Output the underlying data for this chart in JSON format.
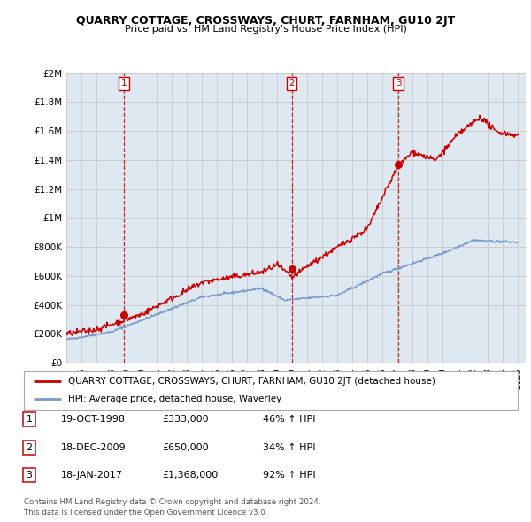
{
  "title": "QUARRY COTTAGE, CROSSWAYS, CHURT, FARNHAM, GU10 2JT",
  "subtitle": "Price paid vs. HM Land Registry's House Price Index (HPI)",
  "legend_label_red": "QUARRY COTTAGE, CROSSWAYS, CHURT, FARNHAM, GU10 2JT (detached house)",
  "legend_label_blue": "HPI: Average price, detached house, Waverley",
  "transactions": [
    {
      "num": 1,
      "date": "19-OCT-1998",
      "price": 333000,
      "pct": "46%",
      "dir": "↑",
      "x_year": 1998.8
    },
    {
      "num": 2,
      "date": "18-DEC-2009",
      "price": 650000,
      "pct": "34%",
      "dir": "↑",
      "x_year": 2009.96
    },
    {
      "num": 3,
      "date": "18-JAN-2017",
      "price": 1368000,
      "pct": "92%",
      "dir": "↑",
      "x_year": 2017.05
    }
  ],
  "footer_line1": "Contains HM Land Registry data © Crown copyright and database right 2024.",
  "footer_line2": "This data is licensed under the Open Government Licence v3.0.",
  "ylim": [
    0,
    2000000
  ],
  "yticks": [
    0,
    200000,
    400000,
    600000,
    800000,
    1000000,
    1200000,
    1400000,
    1600000,
    1800000,
    2000000
  ],
  "xlim": [
    1995,
    2025.5
  ],
  "red_color": "#cc0000",
  "blue_color": "#7799cc",
  "vline_color": "#cc0000",
  "grid_color": "#cccccc",
  "chart_bg": "#dde8f0",
  "background_color": "#ffffff"
}
